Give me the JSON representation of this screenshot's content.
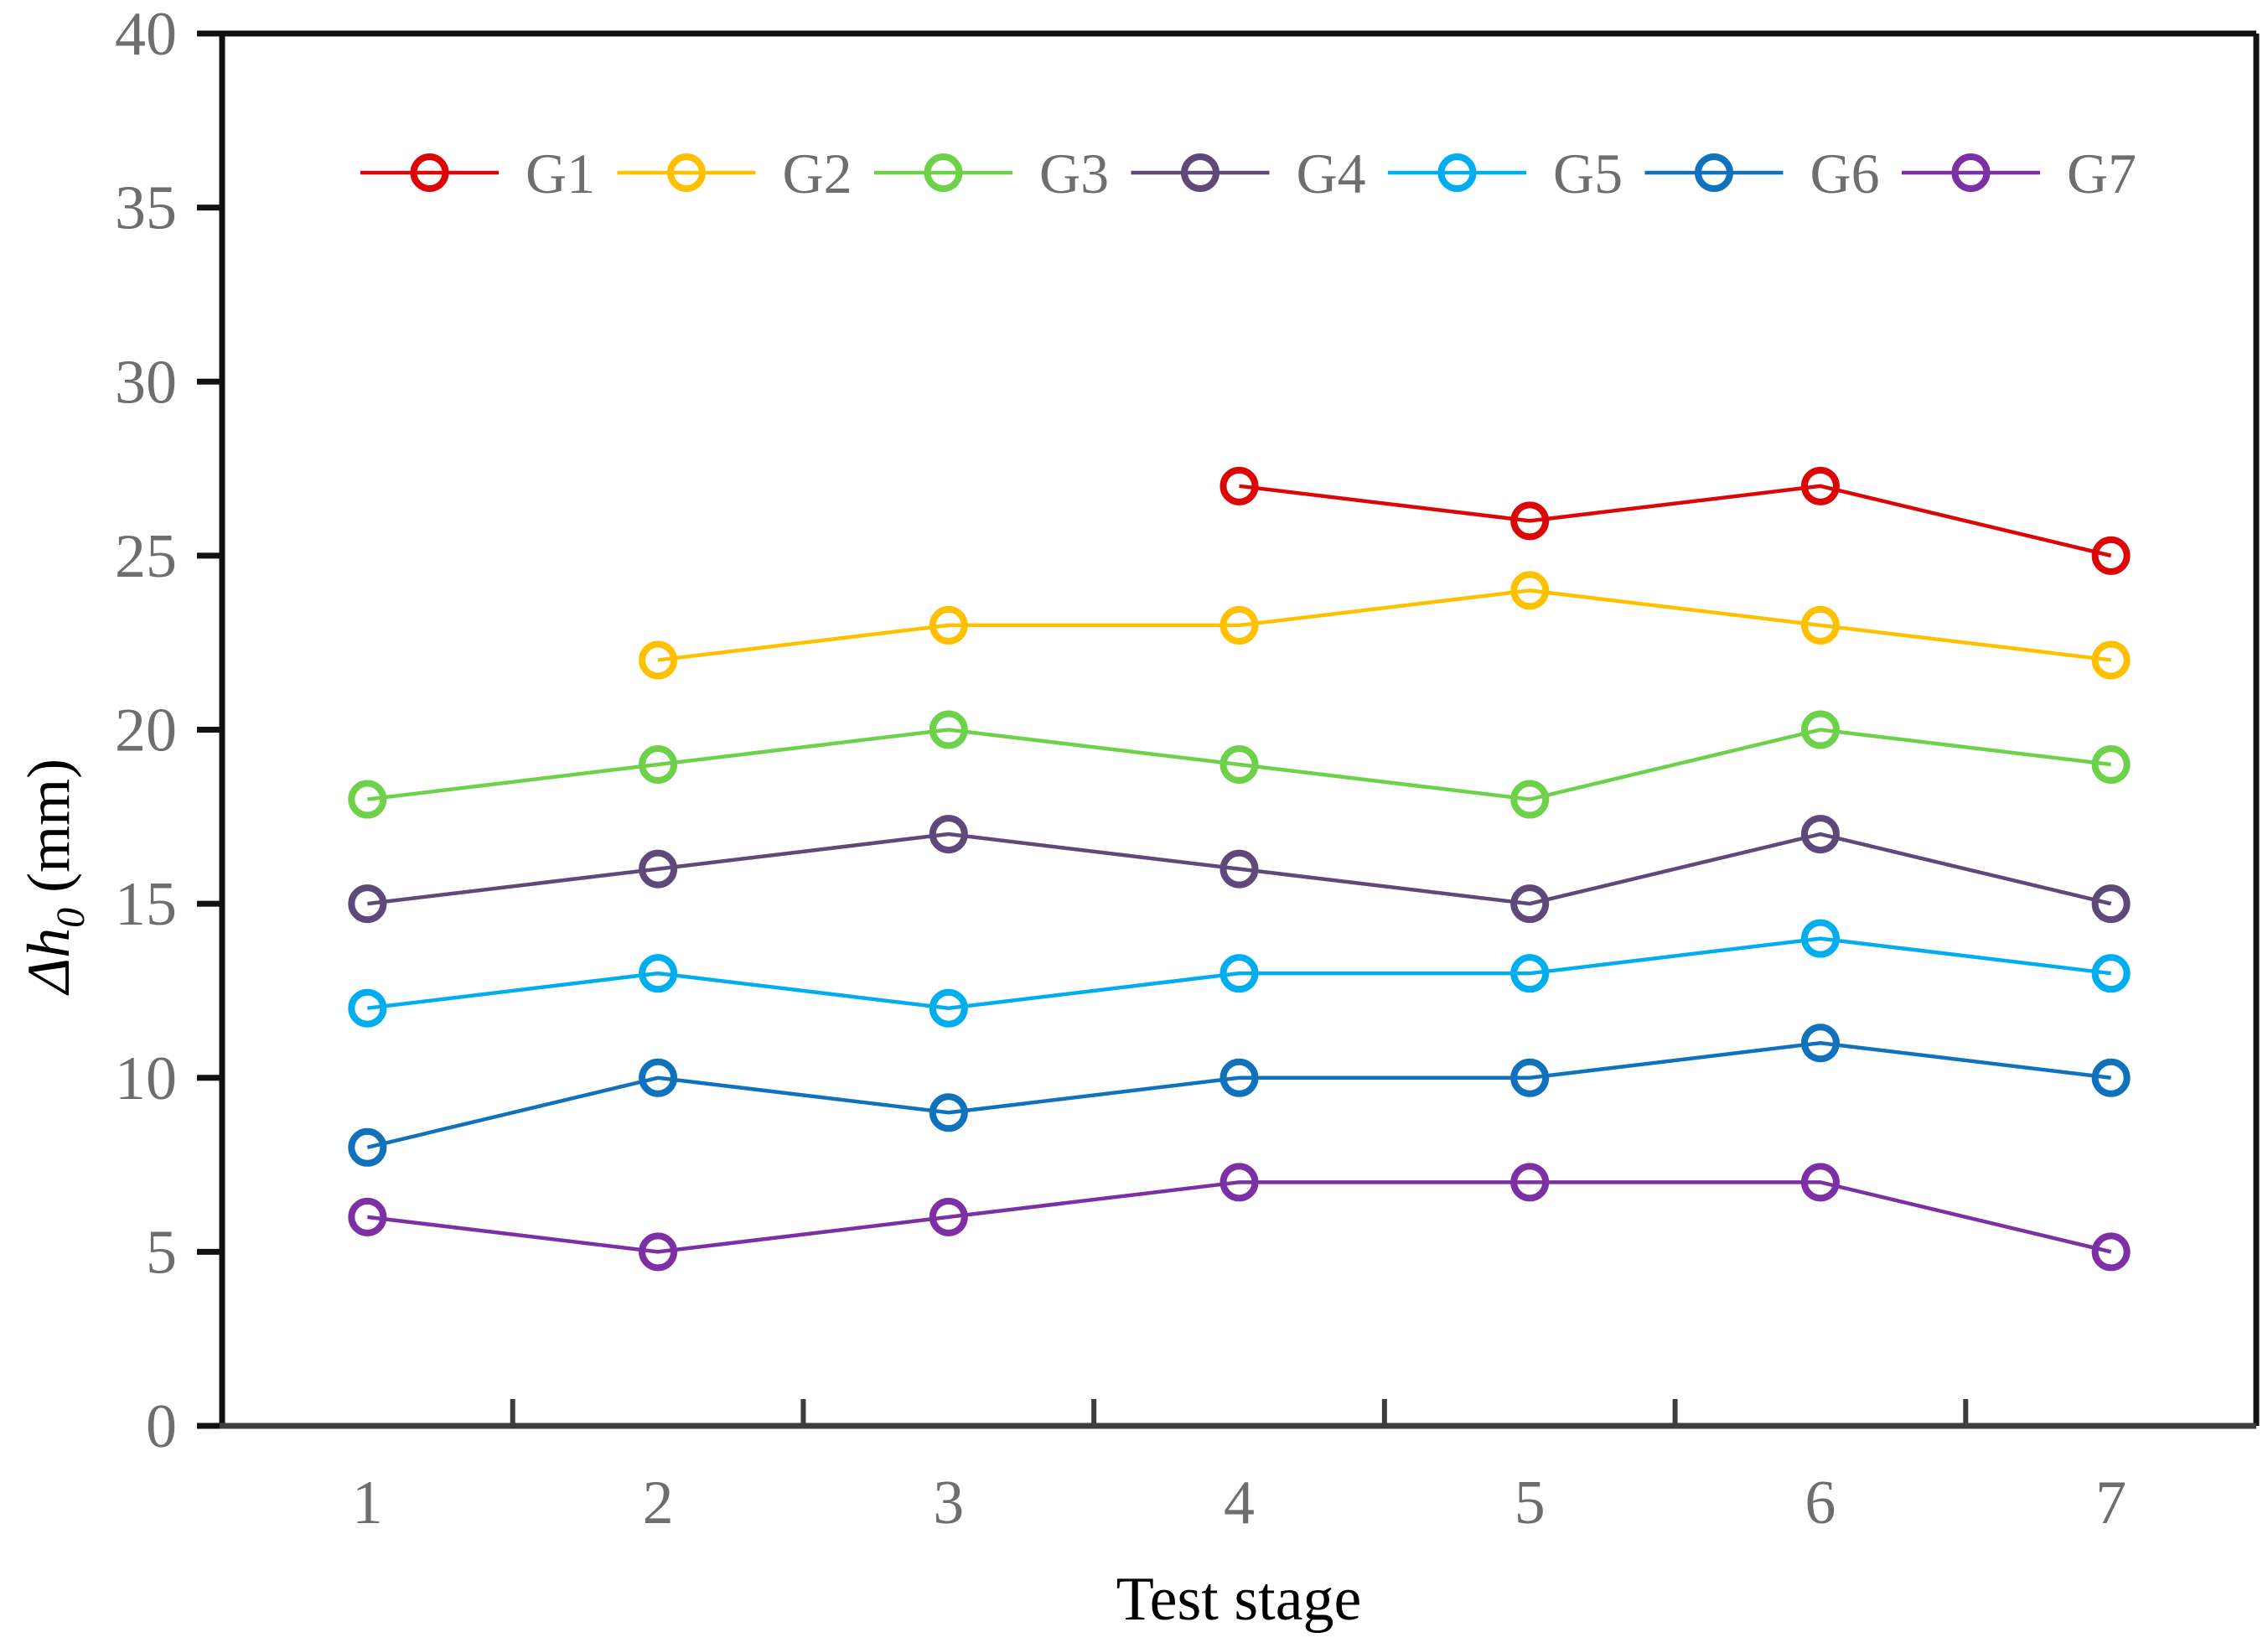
{
  "page": {
    "background": "#FFFFFF"
  },
  "style": {
    "axis_color": "#111111",
    "x_axis_color": "#3D3D3D",
    "tick_label_color": "#6E6E6E",
    "legend_label_color": "#6E6E6E",
    "axis_title_color": "#000000",
    "line_width": 4.5,
    "marker_radius": 19,
    "marker_stroke": 8
  },
  "chart_data": {
    "type": "line",
    "title": "",
    "xlabel": "Test stage",
    "ylabel": {
      "main": "Δh",
      "sub": "0",
      "unit": " (mm)"
    },
    "categories": [
      "1",
      "2",
      "3",
      "4",
      "5",
      "6",
      "7"
    ],
    "x_range": [
      0.5,
      7.5
    ],
    "ylim": [
      0,
      40
    ],
    "yticks": [
      0,
      5,
      10,
      15,
      20,
      25,
      30,
      35,
      40
    ],
    "grid": false,
    "marker": "open-circle",
    "legend_position": "top-inside",
    "series": [
      {
        "name": "G1",
        "color": "#DD0607",
        "values": [
          null,
          null,
          null,
          27,
          26,
          27,
          25
        ]
      },
      {
        "name": "G2",
        "color": "#FFC000",
        "values": [
          null,
          22,
          23,
          23,
          24,
          23,
          22
        ]
      },
      {
        "name": "G3",
        "color": "#6DD14A",
        "values": [
          18,
          19,
          20,
          19,
          18,
          20,
          19
        ]
      },
      {
        "name": "G4",
        "color": "#5F497A",
        "values": [
          15,
          16,
          17,
          16,
          15,
          17,
          15
        ]
      },
      {
        "name": "G5",
        "color": "#00AEEF",
        "values": [
          12,
          13,
          12,
          13,
          13,
          14,
          13
        ]
      },
      {
        "name": "G6",
        "color": "#1072BC",
        "values": [
          8,
          10,
          9,
          10,
          10,
          11,
          10
        ]
      },
      {
        "name": "G7",
        "color": "#7D2FA5",
        "values": [
          6,
          5,
          6,
          7,
          7,
          7,
          5
        ]
      }
    ]
  }
}
